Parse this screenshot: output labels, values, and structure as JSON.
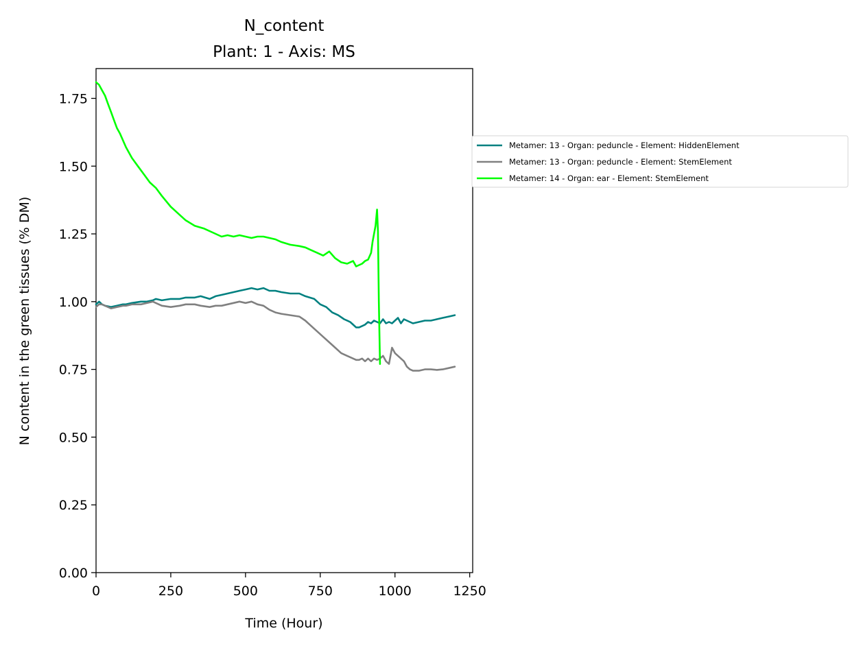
{
  "chart_data": {
    "type": "line",
    "title": "N_content",
    "subtitle": "Plant: 1 - Axis: MS",
    "xlabel": "Time (Hour)",
    "ylabel": "N content in the green tissues (% DM)",
    "xlim": [
      0,
      1260
    ],
    "ylim": [
      0,
      1.86
    ],
    "xticks": [
      0,
      250,
      500,
      750,
      1000,
      1250
    ],
    "xtick_labels": [
      "0",
      "250",
      "500",
      "750",
      "1000",
      "1250"
    ],
    "yticks": [
      0,
      0.25,
      0.5,
      0.75,
      1.0,
      1.25,
      1.5,
      1.75
    ],
    "ytick_labels": [
      "0.00",
      "0.25",
      "0.50",
      "0.75",
      "1.00",
      "1.25",
      "1.50",
      "1.75"
    ],
    "grid": false,
    "legend_position": "outside-right",
    "series": [
      {
        "name": "Metamer: 13 - Organ: peduncle - Element: HiddenElement",
        "color": "#008080",
        "x": [
          0,
          10,
          20,
          30,
          50,
          70,
          90,
          100,
          120,
          150,
          170,
          190,
          200,
          220,
          250,
          280,
          300,
          330,
          350,
          380,
          400,
          420,
          440,
          460,
          480,
          500,
          520,
          540,
          560,
          580,
          600,
          620,
          650,
          680,
          700,
          730,
          750,
          770,
          790,
          810,
          830,
          850,
          860,
          870,
          880,
          890,
          900,
          910,
          920,
          930,
          940,
          950,
          960,
          970,
          980,
          990,
          1000,
          1010,
          1020,
          1030,
          1040,
          1050,
          1060,
          1080,
          1100,
          1120,
          1140,
          1160,
          1180,
          1200
        ],
        "y": [
          0.99,
          1.0,
          0.99,
          0.985,
          0.98,
          0.985,
          0.99,
          0.99,
          0.995,
          1.0,
          1.0,
          1.005,
          1.01,
          1.005,
          1.01,
          1.01,
          1.015,
          1.015,
          1.02,
          1.01,
          1.02,
          1.025,
          1.03,
          1.035,
          1.04,
          1.045,
          1.05,
          1.045,
          1.05,
          1.04,
          1.04,
          1.035,
          1.03,
          1.03,
          1.02,
          1.01,
          0.99,
          0.98,
          0.96,
          0.95,
          0.935,
          0.925,
          0.915,
          0.905,
          0.905,
          0.91,
          0.915,
          0.925,
          0.92,
          0.93,
          0.925,
          0.92,
          0.935,
          0.92,
          0.925,
          0.92,
          0.93,
          0.94,
          0.92,
          0.935,
          0.93,
          0.925,
          0.92,
          0.925,
          0.93,
          0.93,
          0.935,
          0.94,
          0.945,
          0.95
        ]
      },
      {
        "name": "Metamer: 13 - Organ: peduncle - Element: StemElement",
        "color": "#808080",
        "x": [
          0,
          10,
          20,
          30,
          50,
          70,
          90,
          100,
          120,
          150,
          170,
          190,
          200,
          220,
          250,
          280,
          300,
          330,
          350,
          380,
          400,
          420,
          440,
          460,
          480,
          500,
          520,
          540,
          560,
          580,
          600,
          620,
          650,
          680,
          700,
          720,
          740,
          760,
          780,
          800,
          820,
          840,
          860,
          870,
          880,
          890,
          900,
          910,
          920,
          930,
          940,
          950,
          960,
          970,
          980,
          990,
          1000,
          1010,
          1020,
          1030,
          1040,
          1050,
          1060,
          1080,
          1100,
          1120,
          1140,
          1160,
          1180,
          1200
        ],
        "y": [
          0.98,
          0.99,
          0.99,
          0.985,
          0.975,
          0.98,
          0.985,
          0.985,
          0.99,
          0.99,
          0.995,
          1.0,
          0.995,
          0.985,
          0.98,
          0.985,
          0.99,
          0.99,
          0.985,
          0.98,
          0.985,
          0.985,
          0.99,
          0.995,
          1.0,
          0.995,
          1.0,
          0.99,
          0.985,
          0.97,
          0.96,
          0.955,
          0.95,
          0.945,
          0.93,
          0.91,
          0.89,
          0.87,
          0.85,
          0.83,
          0.81,
          0.8,
          0.79,
          0.785,
          0.785,
          0.79,
          0.78,
          0.79,
          0.78,
          0.79,
          0.785,
          0.79,
          0.8,
          0.78,
          0.77,
          0.83,
          0.81,
          0.8,
          0.79,
          0.78,
          0.76,
          0.75,
          0.745,
          0.745,
          0.75,
          0.75,
          0.748,
          0.75,
          0.755,
          0.76
        ]
      },
      {
        "name": "Metamer: 14 - Organ: ear - Element: StemElement",
        "color": "#00ff00",
        "x": [
          0,
          10,
          20,
          30,
          40,
          50,
          60,
          70,
          80,
          100,
          120,
          140,
          160,
          180,
          200,
          220,
          250,
          280,
          300,
          330,
          360,
          400,
          420,
          440,
          460,
          480,
          500,
          520,
          540,
          560,
          580,
          600,
          620,
          650,
          680,
          700,
          720,
          740,
          760,
          780,
          800,
          820,
          840,
          860,
          870,
          880,
          890,
          900,
          910,
          920,
          925,
          930,
          935,
          940,
          943,
          946,
          950
        ],
        "y": [
          1.81,
          1.8,
          1.78,
          1.76,
          1.73,
          1.7,
          1.67,
          1.64,
          1.62,
          1.57,
          1.53,
          1.5,
          1.47,
          1.44,
          1.42,
          1.39,
          1.35,
          1.32,
          1.3,
          1.28,
          1.27,
          1.25,
          1.24,
          1.245,
          1.24,
          1.245,
          1.24,
          1.235,
          1.24,
          1.24,
          1.235,
          1.23,
          1.22,
          1.21,
          1.205,
          1.2,
          1.19,
          1.18,
          1.17,
          1.185,
          1.16,
          1.145,
          1.14,
          1.15,
          1.13,
          1.135,
          1.14,
          1.15,
          1.155,
          1.18,
          1.22,
          1.25,
          1.28,
          1.34,
          1.26,
          1.0,
          0.77
        ]
      }
    ]
  }
}
